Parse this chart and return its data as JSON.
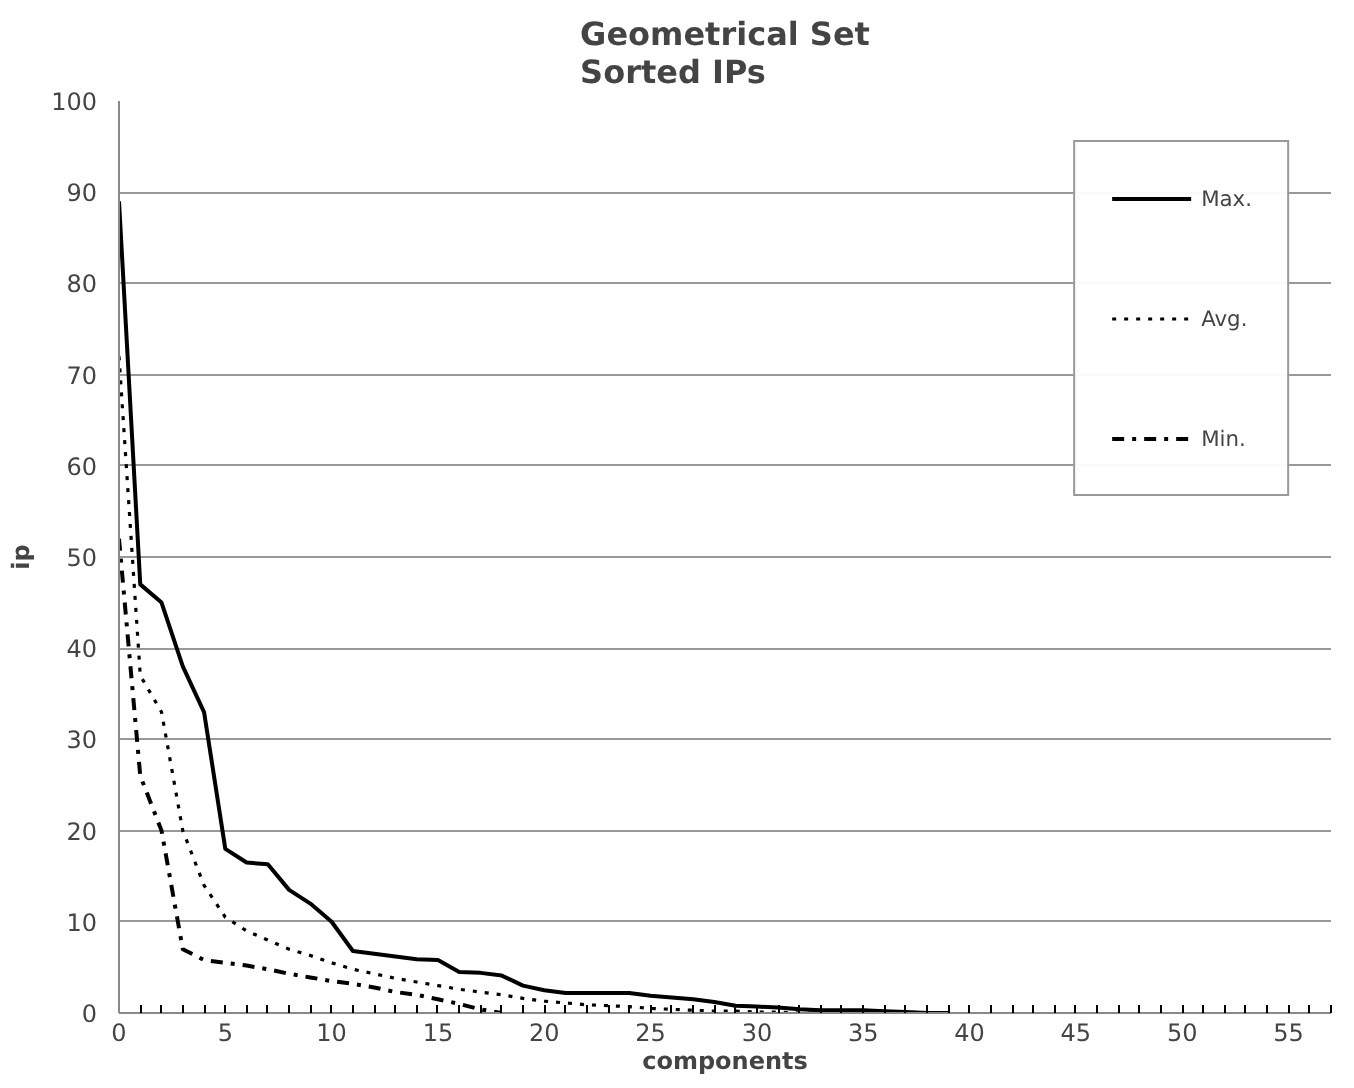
{
  "chart_data": {
    "type": "line",
    "title": "Geometrical Set\nSorted IPs",
    "xlabel": "components",
    "ylabel": "ip",
    "xlim": [
      0,
      57
    ],
    "xticks": [
      0,
      5,
      10,
      15,
      20,
      25,
      30,
      35,
      40,
      45,
      50,
      55
    ],
    "ylim": [
      0,
      100
    ],
    "yticks": [
      0,
      10,
      20,
      30,
      40,
      50,
      60,
      70,
      80,
      90,
      100
    ],
    "grid": "y",
    "legend": "top right",
    "marker": "none",
    "series": [
      {
        "name": "Max.",
        "color": "#000000",
        "line_style": "solid",
        "x": [
          0,
          1,
          2,
          3,
          4,
          5,
          6,
          7,
          8,
          9,
          10,
          11,
          12,
          13,
          14,
          15,
          16,
          17,
          18,
          19,
          20,
          21,
          22,
          23,
          24,
          25,
          26,
          27,
          28,
          29,
          30,
          31,
          32,
          33,
          34,
          35,
          36,
          37,
          38,
          39
        ],
        "values": [
          89,
          47,
          45,
          38,
          33,
          18,
          16.5,
          16.3,
          13.5,
          12,
          10,
          6.8,
          6.5,
          6.2,
          5.9,
          5.8,
          4.5,
          4.4,
          4.1,
          3,
          2.5,
          2.2,
          2.2,
          2.2,
          2.2,
          1.9,
          1.7,
          1.5,
          1.2,
          0.8,
          0.7,
          0.6,
          0.4,
          0.3,
          0.3,
          0.3,
          0.2,
          0.1,
          0,
          0
        ]
      },
      {
        "name": "Avg.",
        "color": "#000000",
        "line_style": "dotted",
        "x": [
          0,
          1,
          2,
          3,
          4,
          5,
          6,
          7,
          8,
          9,
          10,
          11,
          12,
          13,
          14,
          15,
          16,
          17,
          18,
          19,
          20,
          21,
          22,
          23,
          24,
          25,
          26,
          27,
          28,
          29,
          30,
          31,
          32,
          33
        ],
        "values": [
          72,
          37,
          33,
          20,
          14,
          10.5,
          9,
          8,
          7,
          6.3,
          5.5,
          4.8,
          4.3,
          3.8,
          3.4,
          3,
          2.6,
          2.3,
          2,
          1.6,
          1.3,
          1.1,
          0.9,
          0.8,
          0.7,
          0.5,
          0.4,
          0.3,
          0.2,
          0.2,
          0.1,
          0.1,
          0,
          0
        ]
      },
      {
        "name": "Min.",
        "color": "#000000",
        "line_style": "dashdot",
        "x": [
          0,
          1,
          2,
          3,
          4,
          5,
          6,
          7,
          8,
          9,
          10,
          11,
          12,
          13,
          14,
          15,
          16,
          17,
          18
        ],
        "values": [
          52,
          26,
          20,
          7,
          5.8,
          5.5,
          5.2,
          4.8,
          4.3,
          3.9,
          3.5,
          3.2,
          2.8,
          2.3,
          2,
          1.5,
          1,
          0.4,
          0
        ]
      }
    ]
  }
}
